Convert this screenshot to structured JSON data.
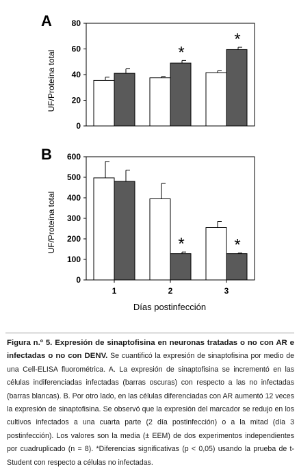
{
  "chart_data": [
    {
      "panel_label": "A",
      "type": "bar",
      "ylabel": "UF/Proteína total",
      "ylim": [
        0,
        80
      ],
      "yticks": [
        0,
        20,
        40,
        60,
        80
      ],
      "categories": [
        "1",
        "2",
        "3"
      ],
      "series": [
        {
          "color": "#ffffff",
          "values": [
            35.5,
            37.5,
            41.5
          ],
          "errors": [
            2.5,
            1.0,
            1.5
          ]
        },
        {
          "color": "#5a5a5a",
          "values": [
            41.0,
            49.0,
            59.5
          ],
          "errors": [
            3.5,
            2.0,
            1.8
          ]
        }
      ],
      "significance": [
        {
          "category": "2",
          "series": 1,
          "marker": "*"
        },
        {
          "category": "3",
          "series": 1,
          "marker": "*"
        }
      ]
    },
    {
      "panel_label": "B",
      "type": "bar",
      "ylabel": "UF/Proteína total",
      "xlabel": "Días postinfección",
      "ylim": [
        0,
        600
      ],
      "yticks": [
        0,
        100,
        200,
        300,
        400,
        500,
        600
      ],
      "categories": [
        "1",
        "2",
        "3"
      ],
      "series": [
        {
          "color": "#ffffff",
          "values": [
            497,
            395,
            255
          ],
          "errors": [
            80,
            75,
            30
          ]
        },
        {
          "color": "#5a5a5a",
          "values": [
            480,
            128,
            128
          ],
          "errors": [
            55,
            8,
            3
          ]
        }
      ],
      "significance": [
        {
          "category": "2",
          "series": 1,
          "marker": "*"
        },
        {
          "category": "3",
          "series": 1,
          "marker": "*"
        }
      ]
    }
  ],
  "caption": {
    "head": "Figura n.º 5. Expresión de sinaptofisina en neuronas tratadas o no con AR e infectadas o no con DENV.",
    "body": " Se cuantificó la expresión de sinaptofisina por medio de una Cell-ELISA fluorométrica. A. La expresión de sinaptofisina se incrementó en las células indiferenciadas infectadas (barras oscuras) con respecto a las no infectadas (barras blancas). B. Por otro lado, en las células diferenciadas con AR aumentó 12 veces la expresión de sinaptofisina. Se observó que la expresión del marcador se redujo en los cultivos infectados a una cuarta parte (2 día postinfección) o a la mitad (día 3 postinfección). Los valores son la media (± EEM) de dos experimentos independientes por cuadruplicado (n = 8). *Diferencias significativas (p < 0,05) usando la prueba de t-Student con respecto a células no infectadas."
  }
}
